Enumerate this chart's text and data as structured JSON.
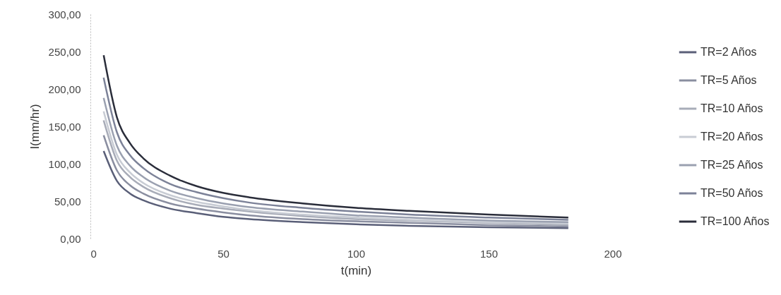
{
  "chart_data": {
    "type": "line",
    "xlabel": "t(min)",
    "ylabel": "I(mm/hr)",
    "x": [
      5,
      10,
      15,
      20,
      30,
      40,
      50,
      60,
      80,
      100,
      120,
      150,
      180
    ],
    "xlim": [
      0,
      200
    ],
    "xticks": [
      0,
      50,
      100,
      150,
      200
    ],
    "ylim": [
      0,
      300
    ],
    "yticks": [
      {
        "value": 0,
        "label": "0,00"
      },
      {
        "value": 50,
        "label": "50,00"
      },
      {
        "value": 100,
        "label": "100,00"
      },
      {
        "value": 150,
        "label": "150,00"
      },
      {
        "value": 200,
        "label": "200,00"
      },
      {
        "value": 250,
        "label": "250,00"
      },
      {
        "value": 300,
        "label": "300,00"
      }
    ],
    "grid": false,
    "legend": "right",
    "marker": "none",
    "line_style": "solid",
    "series": [
      {
        "name": "TR=2 Años",
        "color": "#5a5f78",
        "values": [
          117,
          77,
          60,
          51,
          40,
          34,
          29,
          26,
          22,
          19,
          17,
          15,
          14
        ]
      },
      {
        "name": "TR=5 Años",
        "color": "#8a8ea0",
        "values": [
          138,
          91,
          71,
          60,
          47,
          40,
          35,
          31,
          26,
          23,
          21,
          18,
          16
        ]
      },
      {
        "name": "TR=10 Años",
        "color": "#a8acb8",
        "values": [
          158,
          104,
          82,
          69,
          54,
          45,
          40,
          36,
          30,
          26,
          24,
          21,
          18
        ]
      },
      {
        "name": "TR=20 Años",
        "color": "#c8ccd4",
        "values": [
          170,
          112,
          88,
          74,
          58,
          49,
          43,
          38,
          32,
          28,
          25,
          22,
          20
        ]
      },
      {
        "name": "TR=25 Años",
        "color": "#9aa0b0",
        "values": [
          188,
          124,
          97,
          82,
          64,
          54,
          47,
          42,
          36,
          31,
          28,
          24,
          22
        ]
      },
      {
        "name": "TR=50 Años",
        "color": "#7c8298",
        "values": [
          215,
          142,
          111,
          94,
          73,
          62,
          54,
          48,
          41,
          36,
          32,
          28,
          25
        ]
      },
      {
        "name": "TR=100 Años",
        "color": "#2a2d3a",
        "values": [
          245,
          162,
          127,
          107,
          84,
          70,
          61,
          55,
          47,
          41,
          37,
          32,
          28
        ]
      }
    ]
  }
}
